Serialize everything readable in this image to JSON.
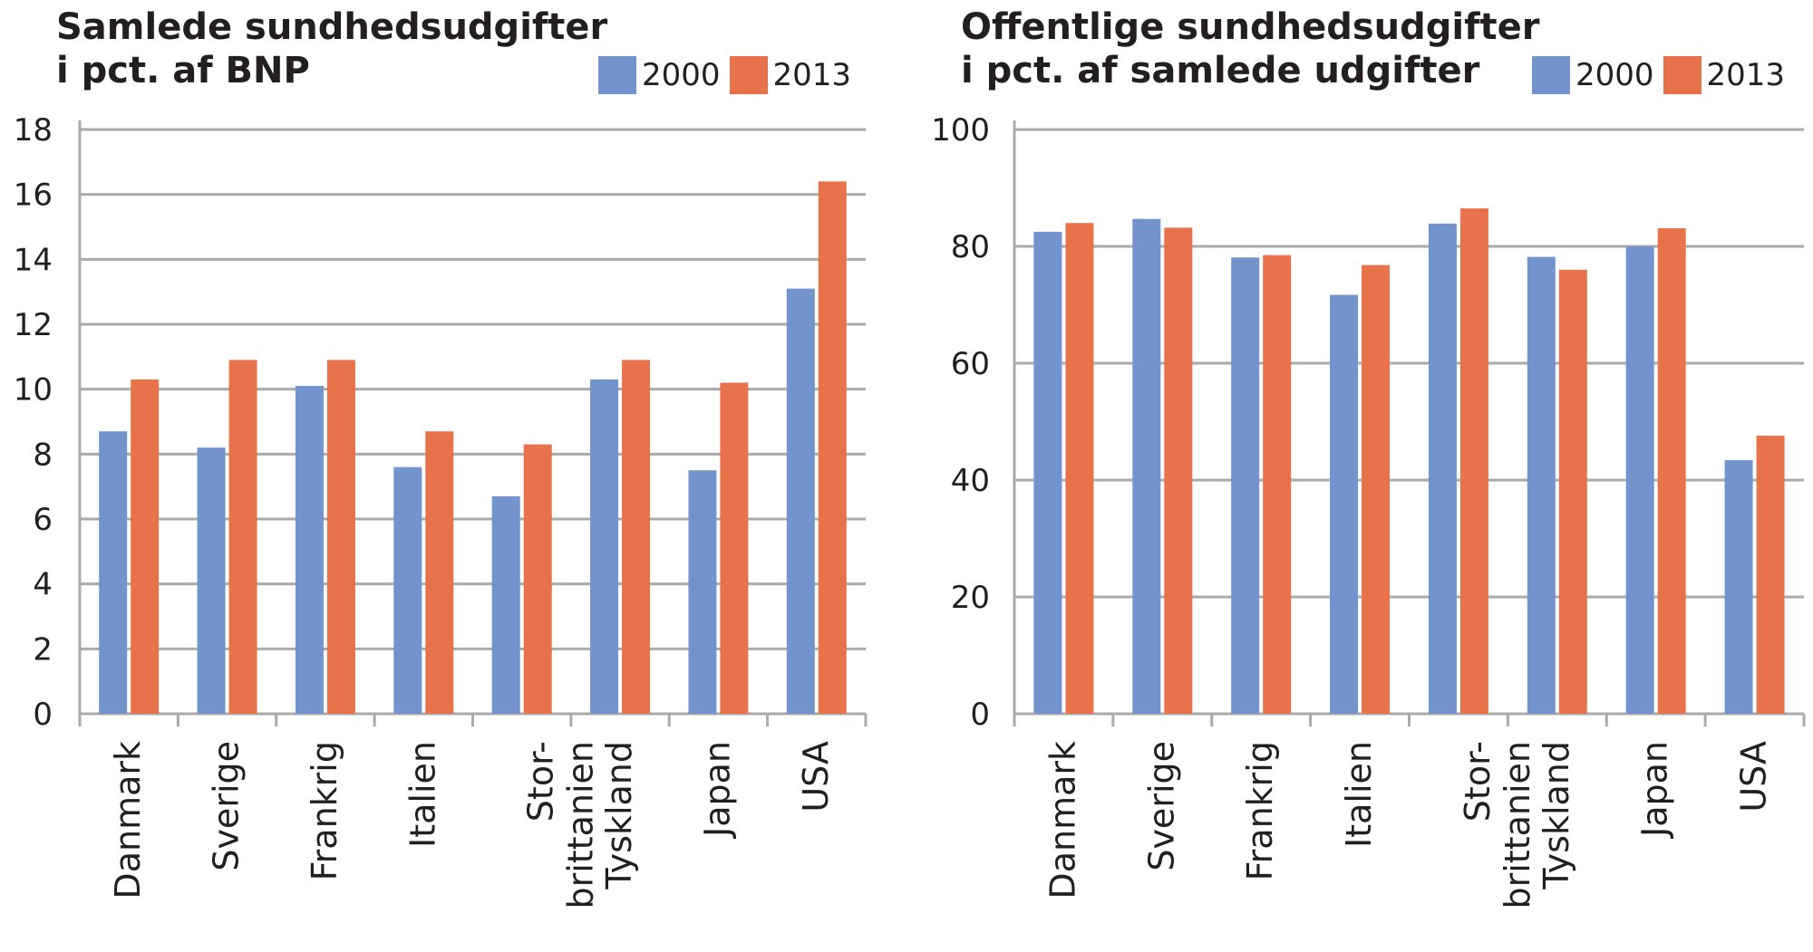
{
  "colors": {
    "series_2000": "#7293cb",
    "series_2013": "#e8734a",
    "grid": "#aaaaaa",
    "text": "#231f20"
  },
  "chart_data": [
    {
      "type": "bar",
      "title_lines": [
        "Samlede sundhedsudgifter",
        "i pct. af BNP"
      ],
      "categories": [
        "Danmark",
        "Sverige",
        "Frankrig",
        "Italien",
        "Stor-\nbrittanien",
        "Tyskland",
        "Japan",
        "USA"
      ],
      "series": [
        {
          "name": "2000",
          "values": [
            8.7,
            8.2,
            10.1,
            7.6,
            6.7,
            10.3,
            7.5,
            13.1
          ]
        },
        {
          "name": "2013",
          "values": [
            10.3,
            10.9,
            10.9,
            8.7,
            8.3,
            10.9,
            10.2,
            16.4
          ]
        }
      ],
      "ylim": [
        0,
        18
      ],
      "yticks": [
        0,
        2,
        4,
        6,
        8,
        10,
        12,
        14,
        16,
        18
      ],
      "xlabel": "",
      "ylabel": "",
      "grid": true,
      "legend": "top-right"
    },
    {
      "type": "bar",
      "title_lines": [
        "Offentlige sundhedsudgifter",
        "i pct. af samlede udgifter"
      ],
      "categories": [
        "Danmark",
        "Sverige",
        "Frankrig",
        "Italien",
        "Stor-\nbrittanien",
        "Tyskland",
        "Japan",
        "USA"
      ],
      "series": [
        {
          "name": "2000",
          "values": [
            82.5,
            84.7,
            78.1,
            71.7,
            83.9,
            78.2,
            80.0,
            43.4
          ]
        },
        {
          "name": "2013",
          "values": [
            84.0,
            83.2,
            78.5,
            76.8,
            86.5,
            76.0,
            83.1,
            47.6
          ]
        }
      ],
      "ylim": [
        0,
        100
      ],
      "yticks": [
        0,
        20,
        40,
        60,
        80,
        100
      ],
      "xlabel": "",
      "ylabel": "",
      "grid": true,
      "legend": "top-right"
    }
  ]
}
